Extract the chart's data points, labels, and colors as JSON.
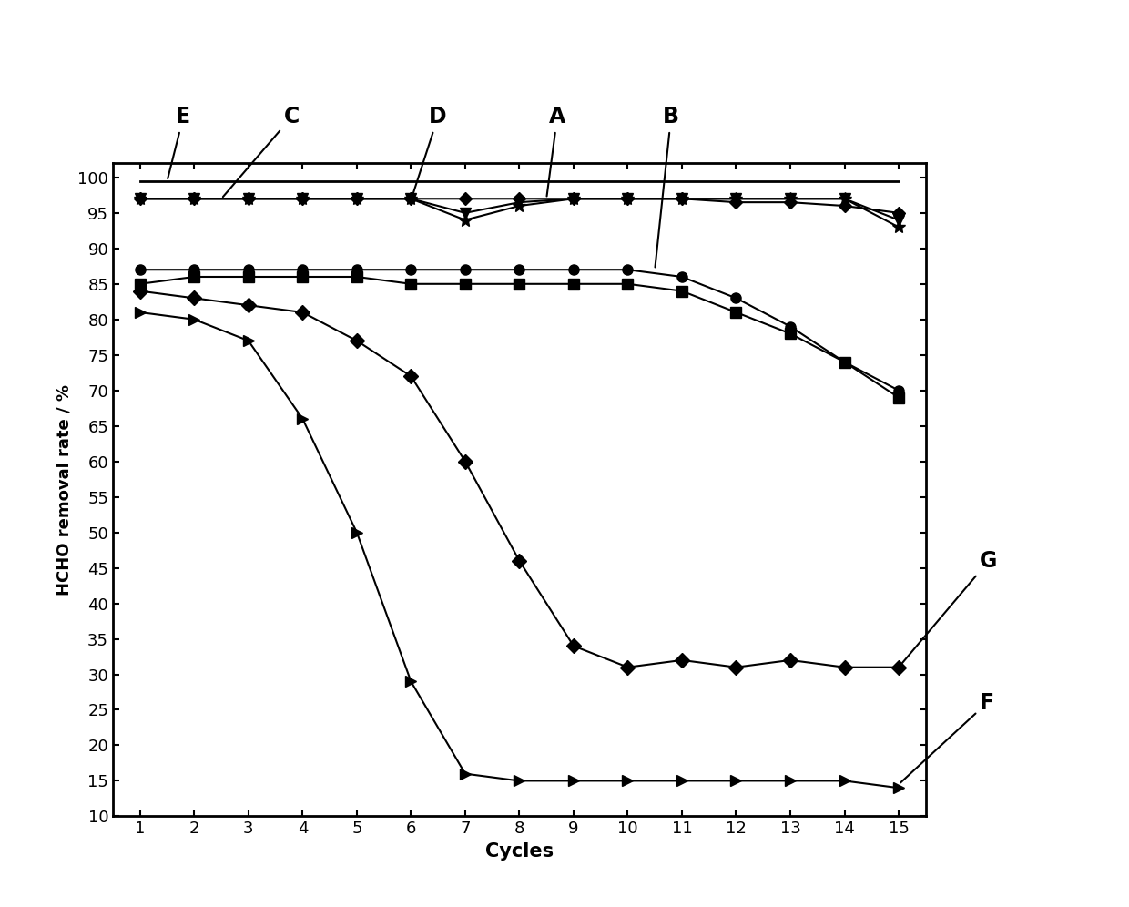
{
  "xlabel": "Cycles",
  "ylabel": "HCHO removal rate / %",
  "xlim": [
    1,
    15
  ],
  "ylim": [
    10,
    102
  ],
  "yticks": [
    10,
    15,
    20,
    25,
    30,
    35,
    40,
    45,
    50,
    55,
    60,
    65,
    70,
    75,
    80,
    85,
    90,
    95,
    100
  ],
  "xticks": [
    1,
    2,
    3,
    4,
    5,
    6,
    7,
    8,
    9,
    10,
    11,
    12,
    13,
    14,
    15
  ],
  "series": {
    "E": {
      "x": [
        1,
        2,
        3,
        4,
        5,
        6,
        7,
        8,
        9,
        10,
        11,
        12,
        13,
        14,
        15
      ],
      "y": [
        99.5,
        99.5,
        99.5,
        99.5,
        99.5,
        99.5,
        99.5,
        99.5,
        99.5,
        99.5,
        99.5,
        99.5,
        99.5,
        99.5,
        99.5
      ],
      "marker": "None",
      "linestyle": "-",
      "linewidth": 2.0,
      "markersize": 0
    },
    "A": {
      "x": [
        1,
        2,
        3,
        4,
        5,
        6,
        7,
        8,
        9,
        10,
        11,
        12,
        13,
        14,
        15
      ],
      "y": [
        97,
        97,
        97,
        97,
        97,
        97,
        97,
        97,
        97,
        97,
        97,
        96.5,
        96.5,
        96,
        95
      ],
      "marker": "D",
      "linestyle": "-",
      "linewidth": 1.5,
      "markersize": 7
    },
    "C": {
      "x": [
        1,
        2,
        3,
        4,
        5,
        6,
        7,
        8,
        9,
        10,
        11,
        12,
        13,
        14,
        15
      ],
      "y": [
        97,
        97,
        97,
        97,
        97,
        97,
        95,
        96.5,
        97,
        97,
        97,
        97,
        97,
        97,
        94
      ],
      "marker": "v",
      "linestyle": "-",
      "linewidth": 1.5,
      "markersize": 8
    },
    "D": {
      "x": [
        1,
        2,
        3,
        4,
        5,
        6,
        7,
        8,
        9,
        10,
        11,
        12,
        13,
        14,
        15
      ],
      "y": [
        97,
        97,
        97,
        97,
        97,
        97,
        94,
        96,
        97,
        97,
        97,
        97,
        97,
        97,
        93
      ],
      "marker": "*",
      "linestyle": "-",
      "linewidth": 1.5,
      "markersize": 10
    },
    "B": {
      "x": [
        1,
        2,
        3,
        4,
        5,
        6,
        7,
        8,
        9,
        10,
        11,
        12,
        13,
        14,
        15
      ],
      "y": [
        87,
        87,
        87,
        87,
        87,
        87,
        87,
        87,
        87,
        87,
        86,
        83,
        79,
        74,
        70
      ],
      "marker": "o",
      "linestyle": "-",
      "linewidth": 1.5,
      "markersize": 8
    },
    "sq": {
      "x": [
        1,
        2,
        3,
        4,
        5,
        6,
        7,
        8,
        9,
        10,
        11,
        12,
        13,
        14,
        15
      ],
      "y": [
        85,
        86,
        86,
        86,
        86,
        85,
        85,
        85,
        85,
        85,
        84,
        81,
        78,
        74,
        69
      ],
      "marker": "s",
      "linestyle": "-",
      "linewidth": 1.5,
      "markersize": 8
    },
    "F": {
      "x": [
        1,
        2,
        3,
        4,
        5,
        6,
        7,
        8,
        9,
        10,
        11,
        12,
        13,
        14,
        15
      ],
      "y": [
        84,
        83,
        82,
        81,
        77,
        72,
        60,
        46,
        34,
        31,
        32,
        31,
        32,
        31,
        31
      ],
      "marker": "D",
      "linestyle": "-",
      "linewidth": 1.5,
      "markersize": 8
    },
    "G": {
      "x": [
        1,
        2,
        3,
        4,
        5,
        6,
        7,
        8,
        9,
        10,
        11,
        12,
        13,
        14,
        15
      ],
      "y": [
        81,
        80,
        77,
        66,
        50,
        29,
        16,
        15,
        15,
        15,
        15,
        15,
        15,
        15,
        14
      ],
      "marker": ">",
      "linestyle": "-",
      "linewidth": 1.5,
      "markersize": 8
    }
  },
  "background_color": "#ffffff"
}
